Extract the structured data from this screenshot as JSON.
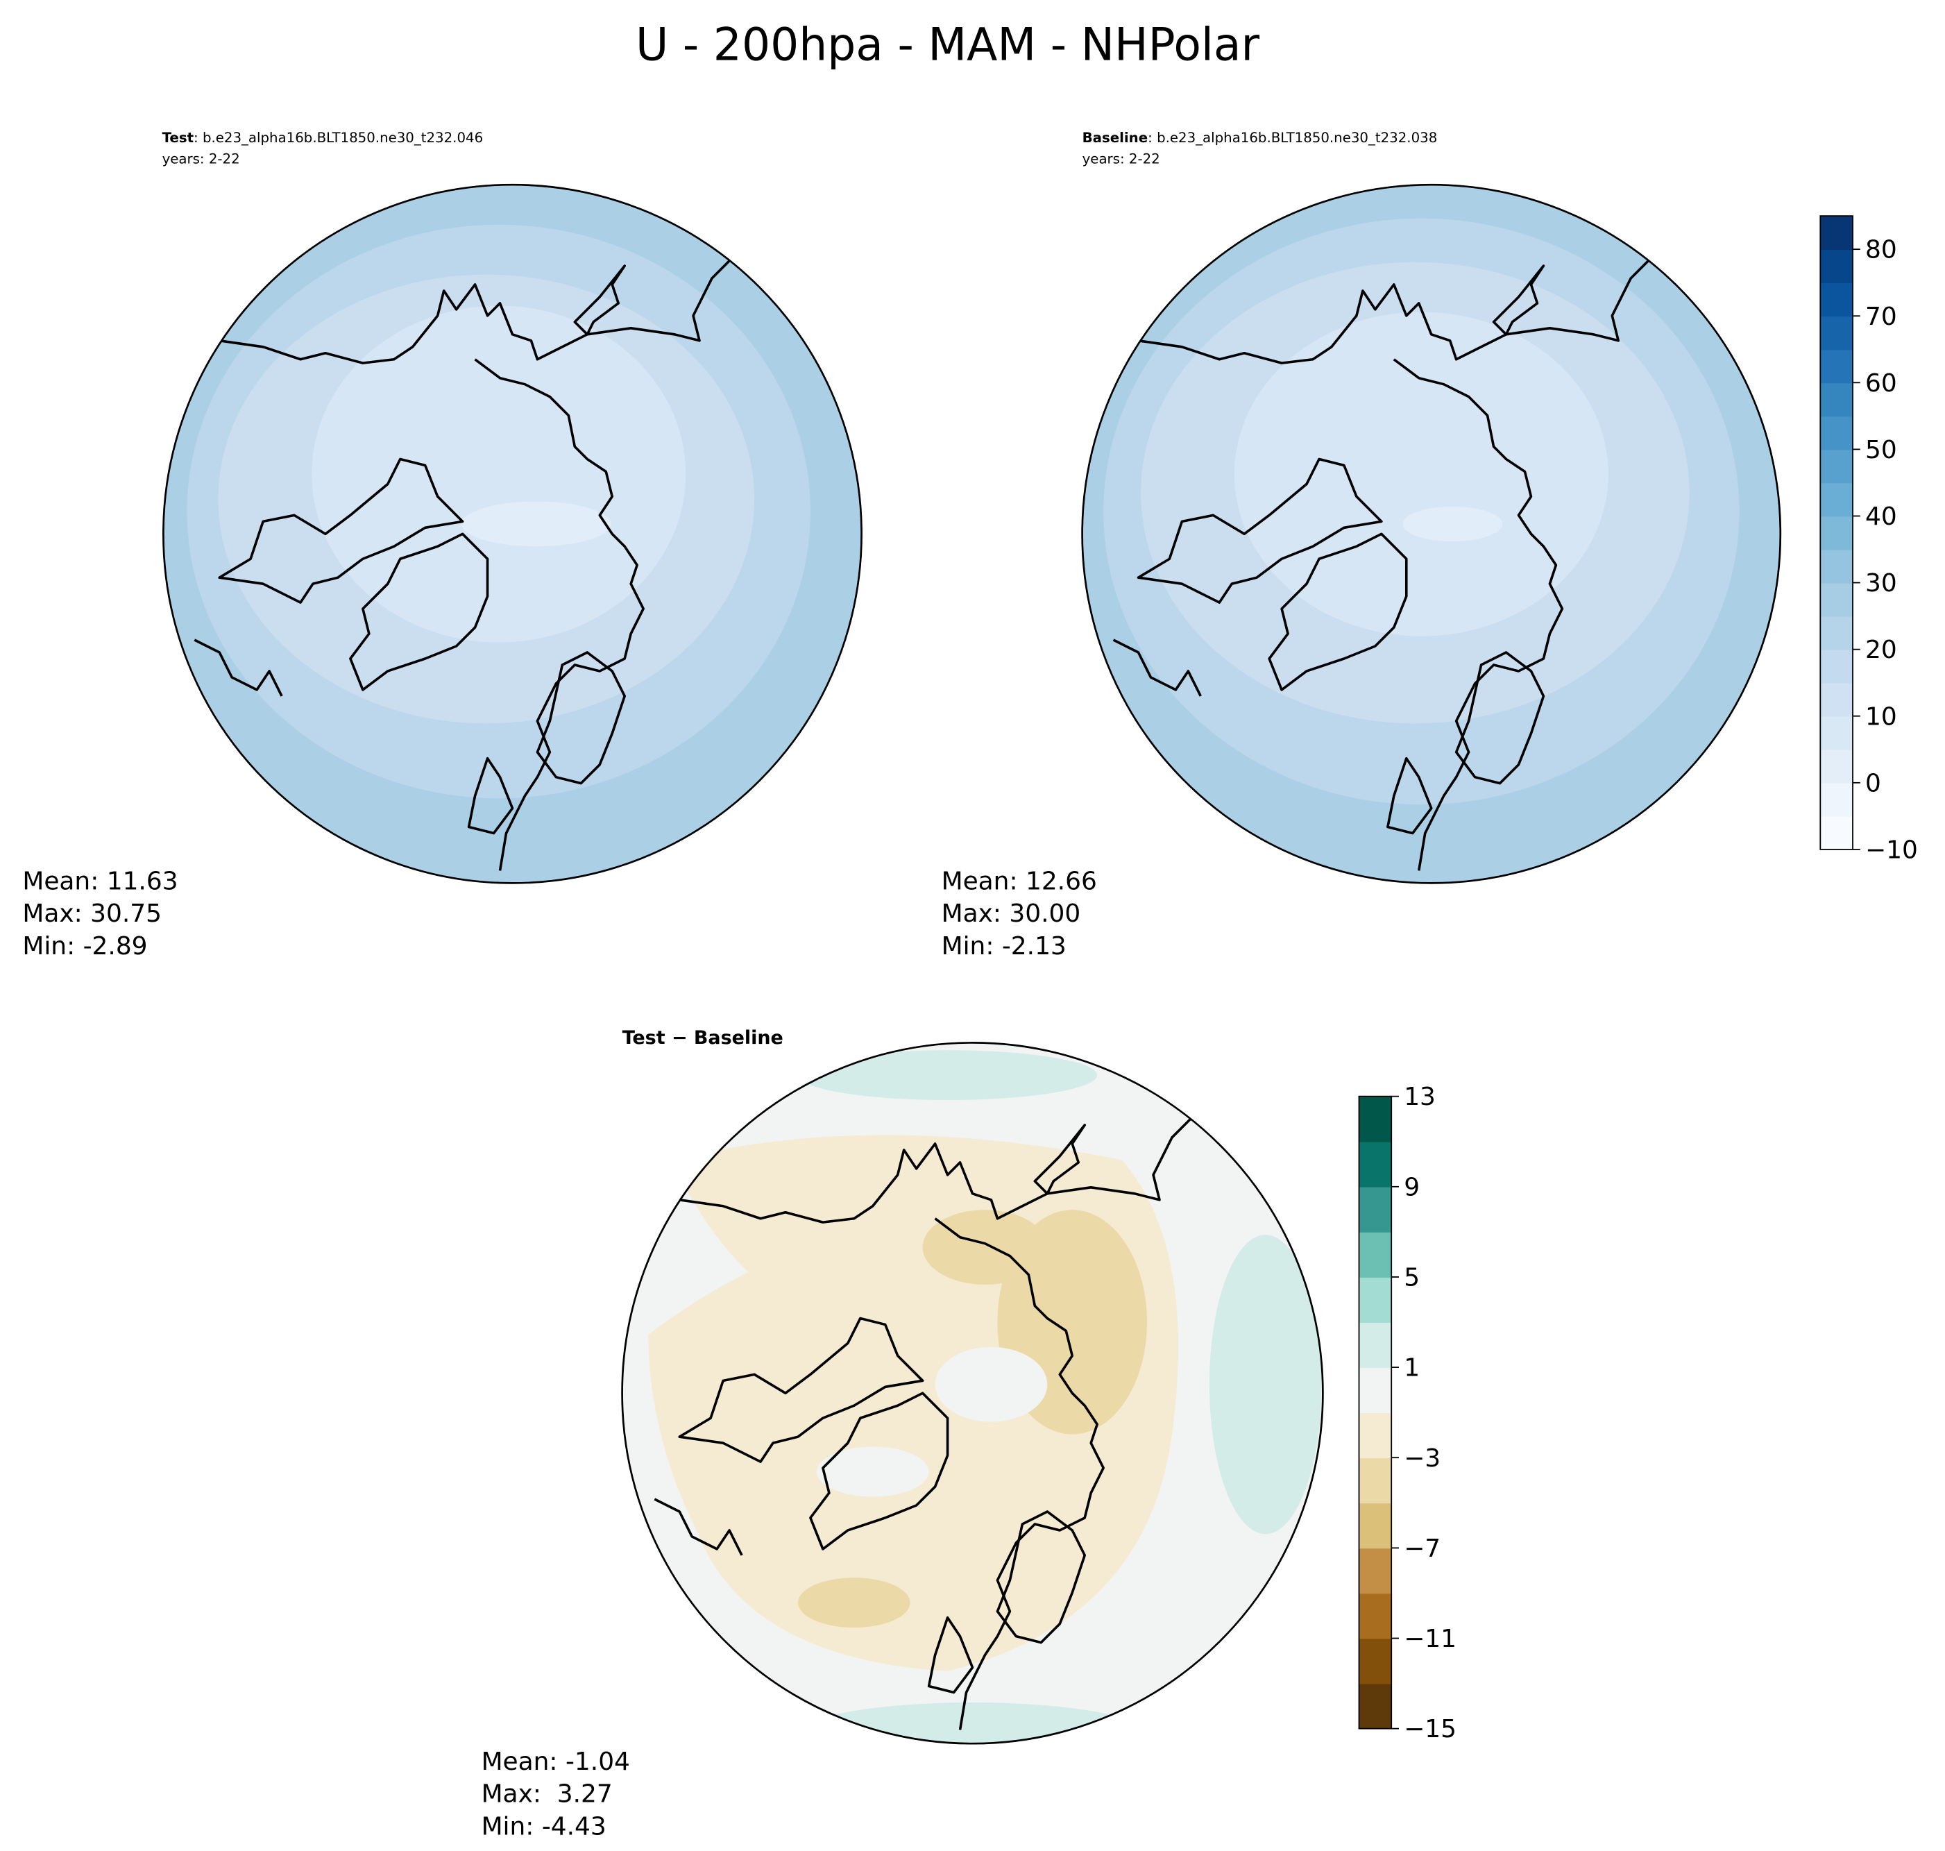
{
  "title": "U - 200hpa - MAM - NHPolar",
  "panels": [
    {
      "label_bold": "Test",
      "label_rest": ": b.e23_alpha16b.BLT1850.ne30_t232.046",
      "years": "years: 2-22",
      "stats": [
        "Mean: 11.63",
        "Max: 30.75",
        "Min: -2.89"
      ]
    },
    {
      "label_bold": "Baseline",
      "label_rest": ": b.e23_alpha16b.BLT1850.ne30_t232.038",
      "years": "years: 2-22",
      "stats": [
        "Mean: 12.66",
        "Max: 30.00",
        "Min: -2.13"
      ]
    },
    {
      "label_bold": "Test − Baseline",
      "stats": [
        "Mean: -1.04",
        "Max:  3.27",
        "Min: -4.43"
      ]
    }
  ],
  "colorbars": [
    {
      "lim": [
        -10,
        85
      ],
      "ticks": [
        {
          "value": -10,
          "label": "−10"
        },
        0,
        10,
        20,
        30,
        40,
        50,
        60,
        70,
        80
      ],
      "colors": [
        "#f7fbff",
        "#eef5fc",
        "#e3eef9",
        "#d9e8f5",
        "#cfe1f2",
        "#c4daee",
        "#b6d4e9",
        "#a6cde4",
        "#94c4df",
        "#7fb9da",
        "#6aaed6",
        "#58a1cf",
        "#4694c7",
        "#3585bf",
        "#2474b7",
        "#1764ab",
        "#0b559f",
        "#08468b",
        "#083674"
      ]
    },
    {
      "lim": [
        -15,
        13
      ],
      "ticks": [
        {
          "value": -15,
          "label": "−15"
        },
        {
          "value": -11,
          "label": "−11"
        },
        {
          "value": -7,
          "label": "−7"
        },
        {
          "value": -3,
          "label": "−3"
        },
        1,
        5,
        9,
        13
      ],
      "colors": [
        "#5e3a0a",
        "#83500b",
        "#a86d1f",
        "#c38f47",
        "#dbc07a",
        "#ebd9a8",
        "#f5ebd2",
        "#f2f4f3",
        "#d3ece8",
        "#a2dcd2",
        "#6bbfb3",
        "#35978f",
        "#09756a",
        "#01574a"
      ]
    }
  ]
}
